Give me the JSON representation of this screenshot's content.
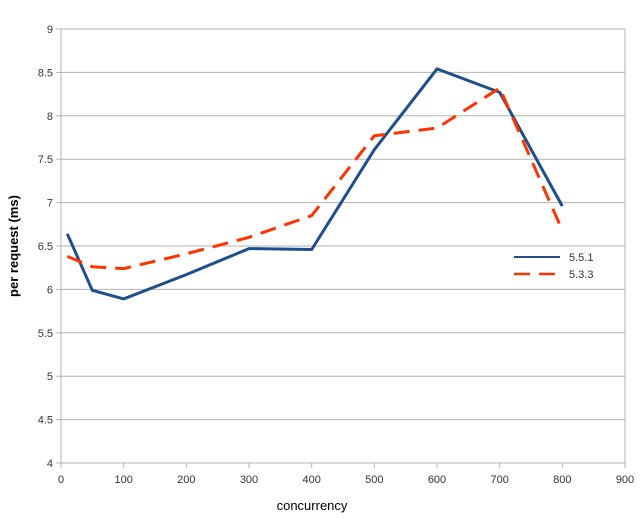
{
  "chart_data": {
    "type": "line",
    "xlabel": "concurrency",
    "ylabel": "per request (ms)",
    "xlim": [
      0,
      900
    ],
    "ylim": [
      4,
      9
    ],
    "xticks": [
      0,
      100,
      200,
      300,
      400,
      500,
      600,
      700,
      800,
      900
    ],
    "yticks": [
      4,
      4.5,
      5,
      5.5,
      6,
      6.5,
      7,
      7.5,
      8,
      8.5,
      9
    ],
    "grid": true,
    "legend": "right",
    "series": [
      {
        "name": "5.5.1",
        "color": "#1f4e8c",
        "style": "solid",
        "x": [
          10,
          50,
          100,
          200,
          300,
          400,
          500,
          600,
          700,
          800
        ],
        "y": [
          6.64,
          5.99,
          5.89,
          6.17,
          6.47,
          6.46,
          7.61,
          8.54,
          8.27,
          6.96
        ]
      },
      {
        "name": "5.3.3",
        "color": "#ff3300",
        "style": "dashed",
        "x": [
          10,
          50,
          100,
          200,
          300,
          400,
          500,
          600,
          700,
          800
        ],
        "y": [
          6.38,
          6.26,
          6.24,
          6.41,
          6.6,
          6.85,
          7.77,
          7.86,
          8.32,
          6.68
        ]
      }
    ]
  }
}
